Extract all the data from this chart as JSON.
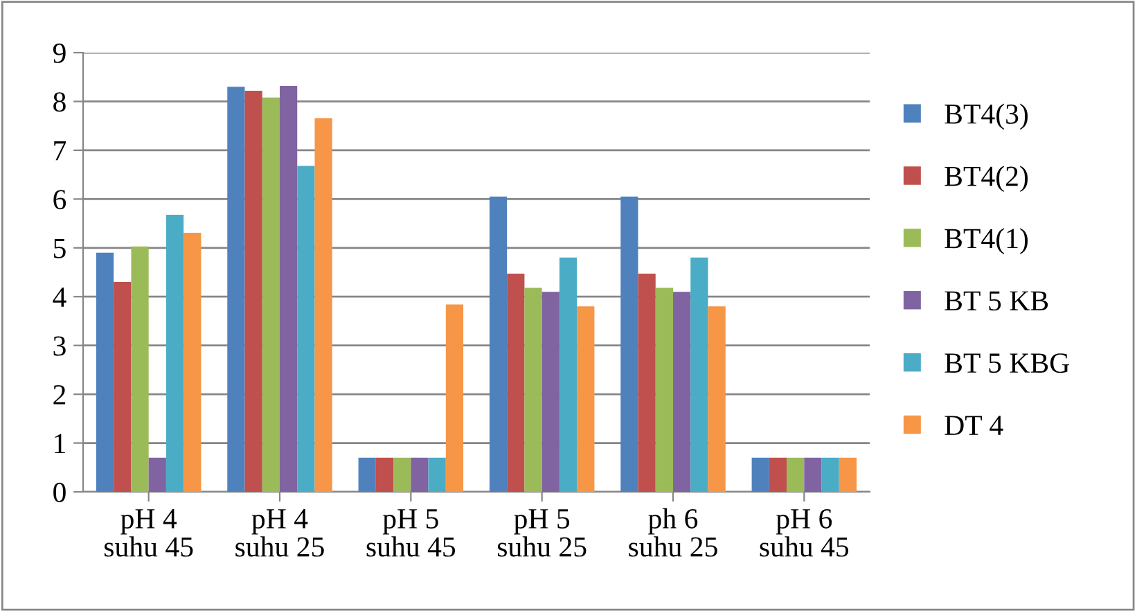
{
  "chart_data": {
    "type": "bar",
    "categories": [
      "pH 4\nsuhu 45",
      "pH 4\nsuhu 25",
      "pH 5\nsuhu 45",
      "pH 5\nsuhu 25",
      "ph 6\nsuhu 25",
      "pH 6\nsuhu 45"
    ],
    "series": [
      {
        "name": "BT4(3)",
        "color": "#4f81bd",
        "values": [
          4.9,
          8.3,
          0.7,
          6.05,
          6.05,
          0.7
        ]
      },
      {
        "name": "BT4(2)",
        "color": "#c0504d",
        "values": [
          4.3,
          8.22,
          0.7,
          4.47,
          4.47,
          0.7
        ]
      },
      {
        "name": "BT4(1)",
        "color": "#9bbb59",
        "values": [
          5.03,
          8.08,
          0.7,
          4.18,
          4.18,
          0.7
        ]
      },
      {
        "name": "BT 5 KB",
        "color": "#8064a2",
        "values": [
          0.7,
          8.32,
          0.7,
          4.1,
          4.1,
          0.7
        ]
      },
      {
        "name": "BT 5 KBG",
        "color": "#4bacc6",
        "values": [
          5.68,
          6.68,
          0.7,
          4.8,
          4.8,
          0.7
        ]
      },
      {
        "name": "DT 4",
        "color": "#f79646",
        "values": [
          5.31,
          7.66,
          3.84,
          3.8,
          3.8,
          0.7
        ]
      }
    ],
    "ylim": [
      0,
      9
    ],
    "yticks": [
      0,
      1,
      2,
      3,
      4,
      5,
      6,
      7,
      8,
      9
    ],
    "grid": "y",
    "legend": "right"
  }
}
